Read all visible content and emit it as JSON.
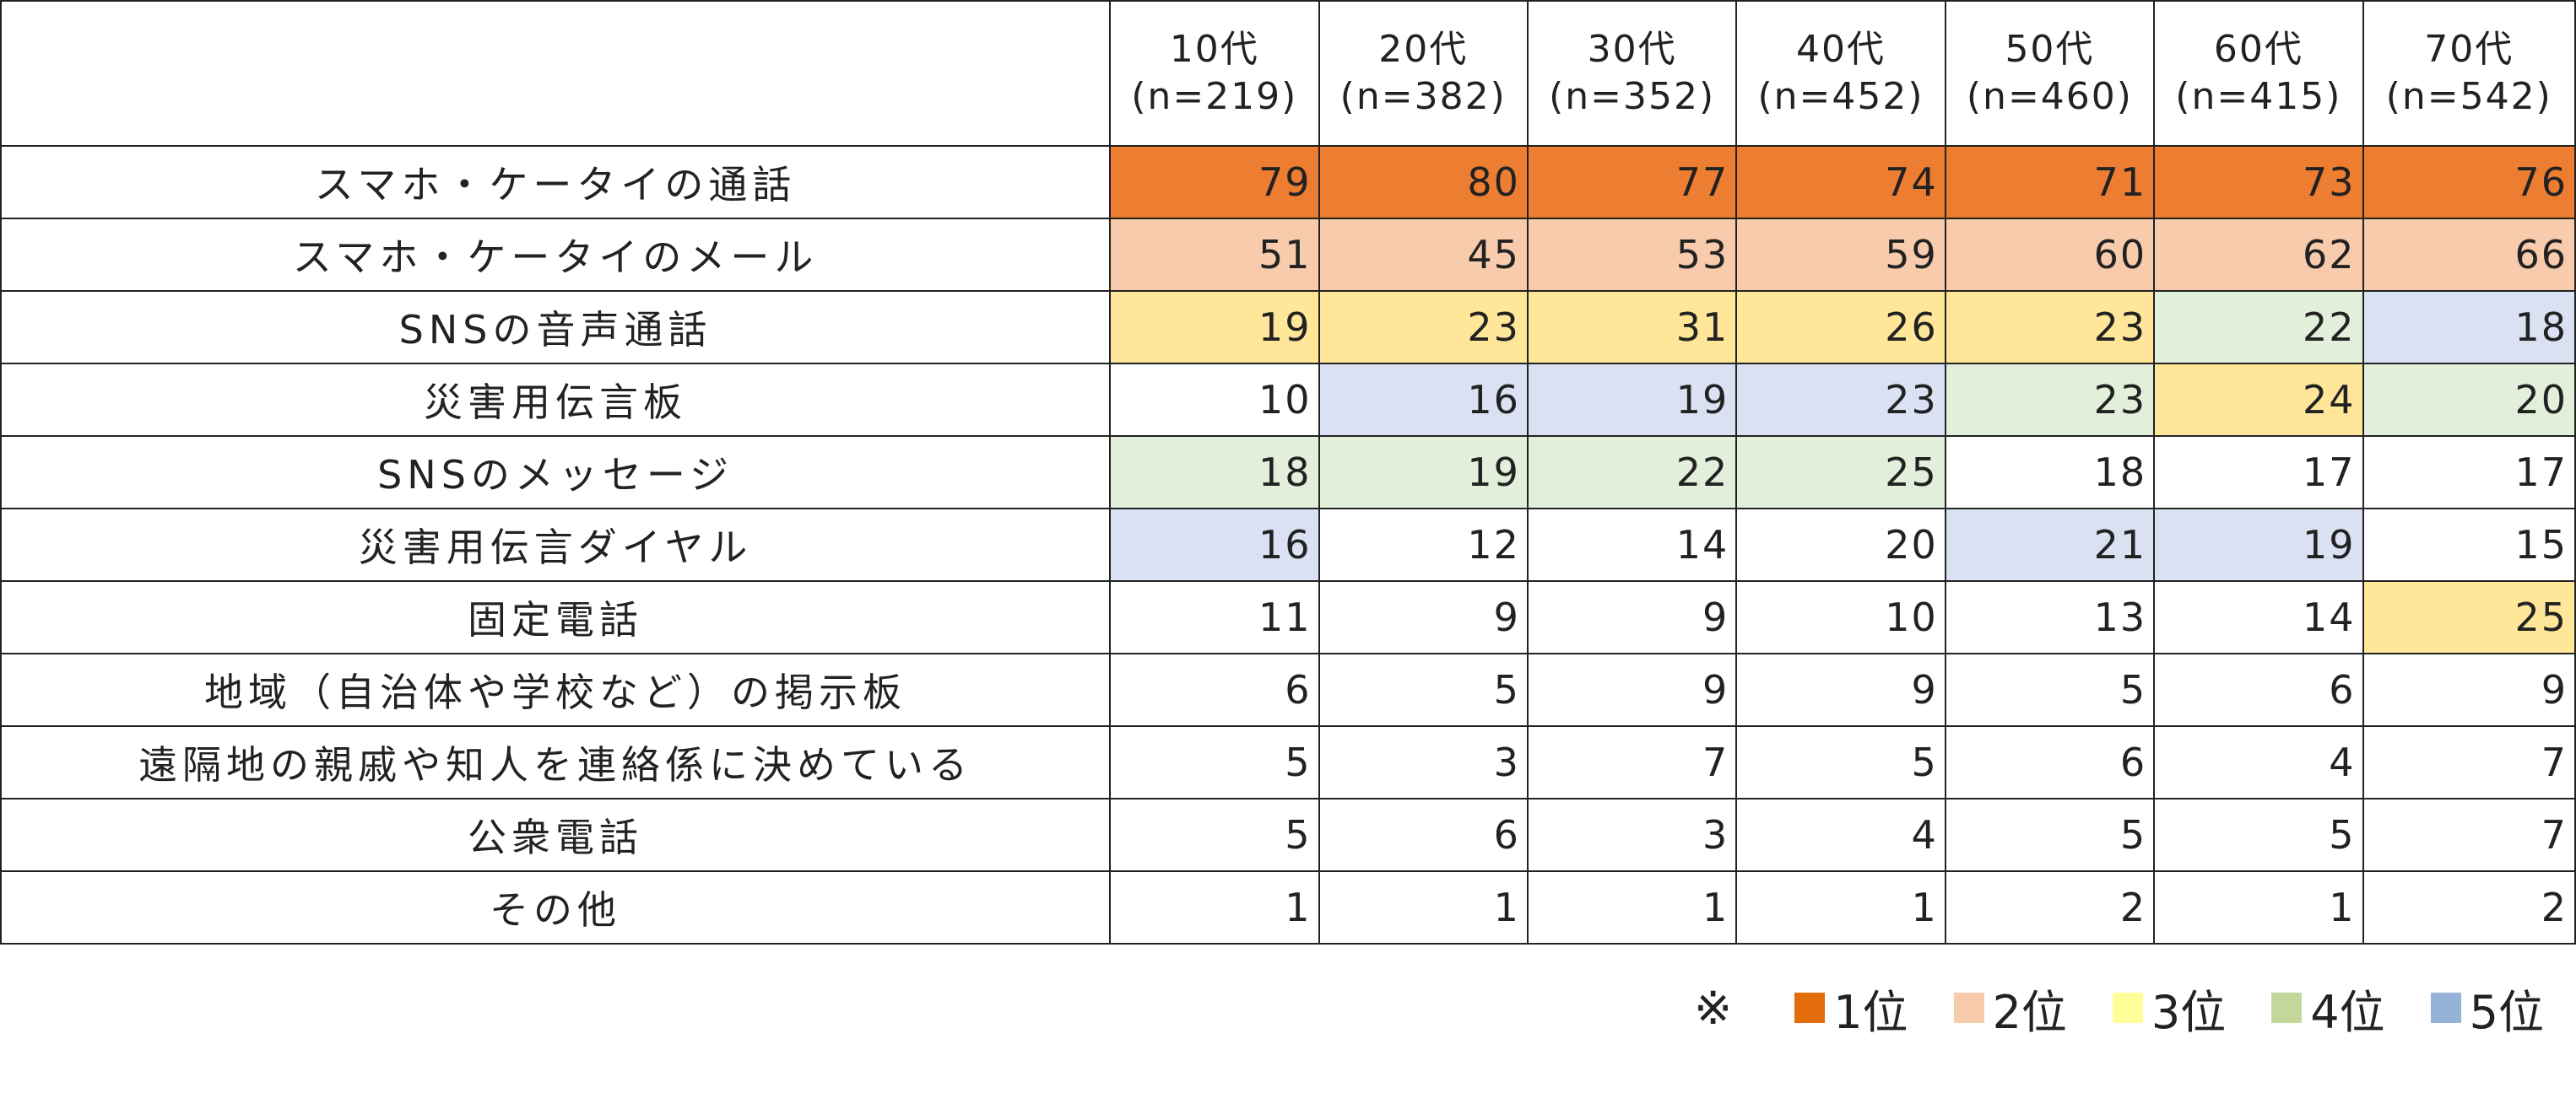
{
  "chart_data": {
    "type": "table",
    "columns": [
      {
        "age": "10代",
        "n": "(n=219)"
      },
      {
        "age": "20代",
        "n": "(n=382)"
      },
      {
        "age": "30代",
        "n": "(n=352)"
      },
      {
        "age": "40代",
        "n": "(n=452)"
      },
      {
        "age": "50代",
        "n": "(n=460)"
      },
      {
        "age": "60代",
        "n": "(n=415)"
      },
      {
        "age": "70代",
        "n": "(n=542)"
      }
    ],
    "rows": [
      {
        "label": "スマホ・ケータイの通話",
        "values": [
          79,
          80,
          77,
          74,
          71,
          73,
          76
        ],
        "ranks": [
          1,
          1,
          1,
          1,
          1,
          1,
          1
        ]
      },
      {
        "label": "スマホ・ケータイのメール",
        "values": [
          51,
          45,
          53,
          59,
          60,
          62,
          66
        ],
        "ranks": [
          2,
          2,
          2,
          2,
          2,
          2,
          2
        ]
      },
      {
        "label": "SNSの音声通話",
        "values": [
          19,
          23,
          31,
          26,
          23,
          22,
          18
        ],
        "ranks": [
          3,
          3,
          3,
          3,
          3,
          4,
          5
        ]
      },
      {
        "label": "災害用伝言板",
        "values": [
          10,
          16,
          19,
          23,
          23,
          24,
          20
        ],
        "ranks": [
          0,
          5,
          5,
          5,
          4,
          3,
          4
        ]
      },
      {
        "label": "SNSのメッセージ",
        "values": [
          18,
          19,
          22,
          25,
          18,
          17,
          17
        ],
        "ranks": [
          4,
          4,
          4,
          4,
          0,
          0,
          0
        ]
      },
      {
        "label": "災害用伝言ダイヤル",
        "values": [
          16,
          12,
          14,
          20,
          21,
          19,
          15
        ],
        "ranks": [
          5,
          0,
          0,
          0,
          5,
          5,
          0
        ]
      },
      {
        "label": "固定電話",
        "values": [
          11,
          9,
          9,
          10,
          13,
          14,
          25
        ],
        "ranks": [
          0,
          0,
          0,
          0,
          0,
          0,
          3
        ]
      },
      {
        "label": "地域（自治体や学校など）の掲示板",
        "values": [
          6,
          5,
          9,
          9,
          5,
          6,
          9
        ],
        "ranks": [
          0,
          0,
          0,
          0,
          0,
          0,
          0
        ]
      },
      {
        "label": "遠隔地の親戚や知人を連絡係に決めている",
        "values": [
          5,
          3,
          7,
          5,
          6,
          4,
          7
        ],
        "ranks": [
          0,
          0,
          0,
          0,
          0,
          0,
          0
        ]
      },
      {
        "label": "公衆電話",
        "values": [
          5,
          6,
          3,
          4,
          5,
          5,
          7
        ],
        "ranks": [
          0,
          0,
          0,
          0,
          0,
          0,
          0
        ]
      },
      {
        "label": "その他",
        "values": [
          1,
          1,
          1,
          1,
          2,
          1,
          2
        ],
        "ranks": [
          0,
          0,
          0,
          0,
          0,
          0,
          0
        ]
      }
    ],
    "rank_cell_colors": {
      "1": "#ED7D31",
      "2": "#F8CBAD",
      "3": "#FFE699",
      "4": "#E2EFDA",
      "5": "#D9E1F2"
    }
  },
  "legend": {
    "mark": "※",
    "items": [
      {
        "label": "1位",
        "color": "#E26B0A"
      },
      {
        "label": "2位",
        "color": "#F8CBAD"
      },
      {
        "label": "3位",
        "color": "#FFFF99"
      },
      {
        "label": "4位",
        "color": "#C4D79B"
      },
      {
        "label": "5位",
        "color": "#95B3D7"
      }
    ]
  }
}
